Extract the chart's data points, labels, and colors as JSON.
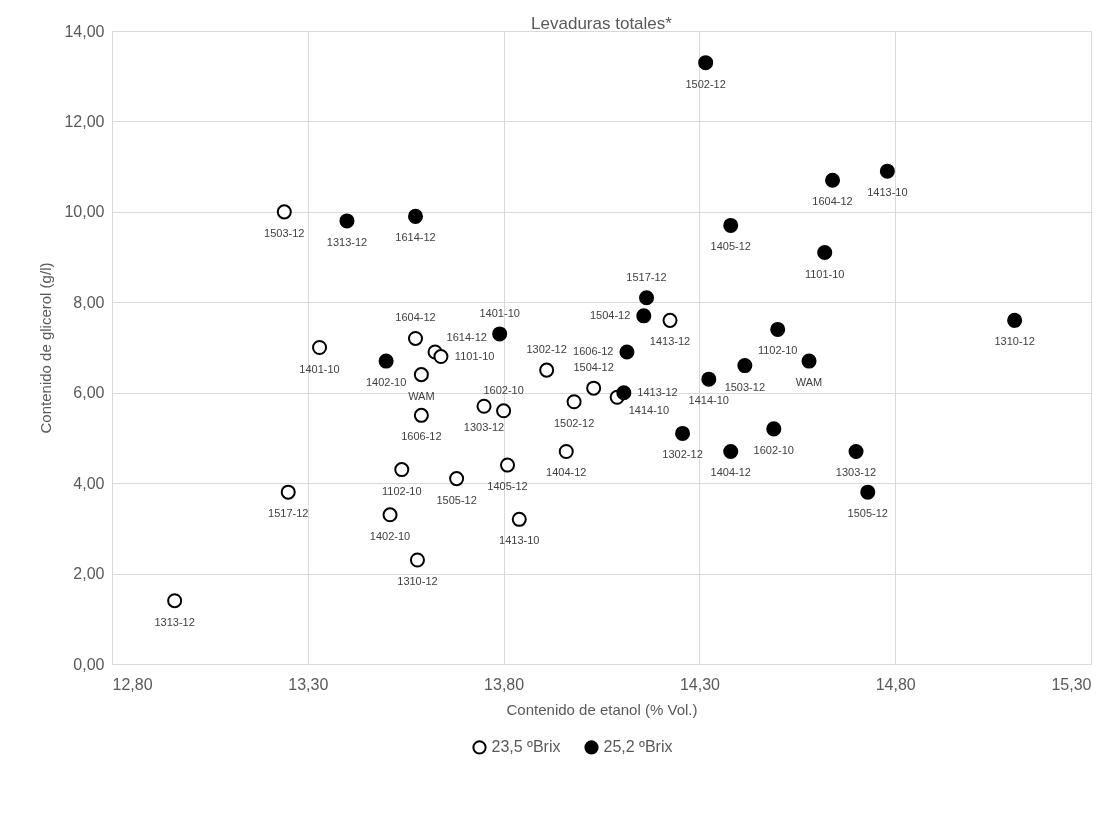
{
  "chart_data": {
    "type": "scatter",
    "title": "Levaduras totales*",
    "xlabel": "Contenido de etanol (% Vol.)",
    "ylabel": "Contenido de glicerol (g/l)",
    "xlim": [
      12.8,
      15.3
    ],
    "ylim": [
      0,
      14
    ],
    "xticks": [
      {
        "value": 12.8,
        "label": "12,80"
      },
      {
        "value": 13.3,
        "label": "13,30"
      },
      {
        "value": 13.8,
        "label": "13,80"
      },
      {
        "value": 14.3,
        "label": "14,30"
      },
      {
        "value": 14.8,
        "label": "14,80"
      },
      {
        "value": 15.3,
        "label": "15,30"
      }
    ],
    "yticks": [
      {
        "value": 0,
        "label": "0,00"
      },
      {
        "value": 2,
        "label": "2,00"
      },
      {
        "value": 4,
        "label": "4,00"
      },
      {
        "value": 6,
        "label": "6,00"
      },
      {
        "value": 8,
        "label": "8,00"
      },
      {
        "value": 10,
        "label": "10,00"
      },
      {
        "value": 12,
        "label": "12,00"
      },
      {
        "value": 14,
        "label": "14,00"
      }
    ],
    "grid": true,
    "legend": "bottom",
    "marker": "circle",
    "series": [
      {
        "name": "23,5 ºBrix",
        "color": "#ffffff",
        "x": [
          12.96,
          13.58,
          13.33,
          13.575,
          13.625,
          13.64,
          13.59,
          13.59,
          13.91,
          13.75,
          13.8,
          13.98,
          14.03,
          14.09,
          14.225,
          13.24,
          13.25,
          13.54,
          13.51,
          13.68,
          13.81,
          13.84,
          13.96
        ],
        "values": [
          1.4,
          2.3,
          7.0,
          7.2,
          6.9,
          6.8,
          6.4,
          5.5,
          6.5,
          5.7,
          5.6,
          5.8,
          6.1,
          5.9,
          7.6,
          10.0,
          3.8,
          4.3,
          3.3,
          4.1,
          4.4,
          3.2,
          4.7
        ],
        "value_labels": [
          "1313-12",
          "1310-12",
          "1401-10",
          "1604-12",
          "1614-12",
          "1101-10",
          "WAM",
          "1606-12",
          "1302-12",
          "1303-12",
          "1602-10",
          "1502-12",
          "1504-12",
          "1414-10",
          "1413-12",
          "1503-12",
          "1517-12",
          "1102-10",
          "1402-10",
          "1505-12",
          "1405-12",
          "1413-10",
          "1404-12"
        ]
      },
      {
        "name": "25,2 ºBrix",
        "color": "#000000",
        "x": [
          14.165,
          14.158,
          14.115,
          14.107,
          14.257,
          14.324,
          14.38,
          14.416,
          14.49,
          14.5,
          14.58,
          14.7,
          14.73,
          15.105,
          14.78,
          14.64,
          14.38,
          14.62,
          14.316,
          13.79,
          13.5,
          13.4,
          13.575
        ],
        "values": [
          8.1,
          7.7,
          6.9,
          6.0,
          5.1,
          6.3,
          4.7,
          6.6,
          5.2,
          7.4,
          6.7,
          4.7,
          3.8,
          7.6,
          10.9,
          10.7,
          9.7,
          9.1,
          13.3,
          7.3,
          6.7,
          9.8,
          9.9
        ],
        "value_labels": [
          "1517-12",
          "1504-12",
          "1606-12",
          "1413-12",
          "1302-12",
          "1414-10",
          "1404-12",
          "1503-12",
          "1602-10",
          "1102-10",
          "WAM",
          "1303-12",
          "1505-12",
          "1310-12",
          "1413-10",
          "1604-12",
          "1405-12",
          "1101-10",
          "1502-12",
          "1401-10",
          "1402-10",
          "1313-12",
          "1614-12"
        ]
      }
    ]
  }
}
